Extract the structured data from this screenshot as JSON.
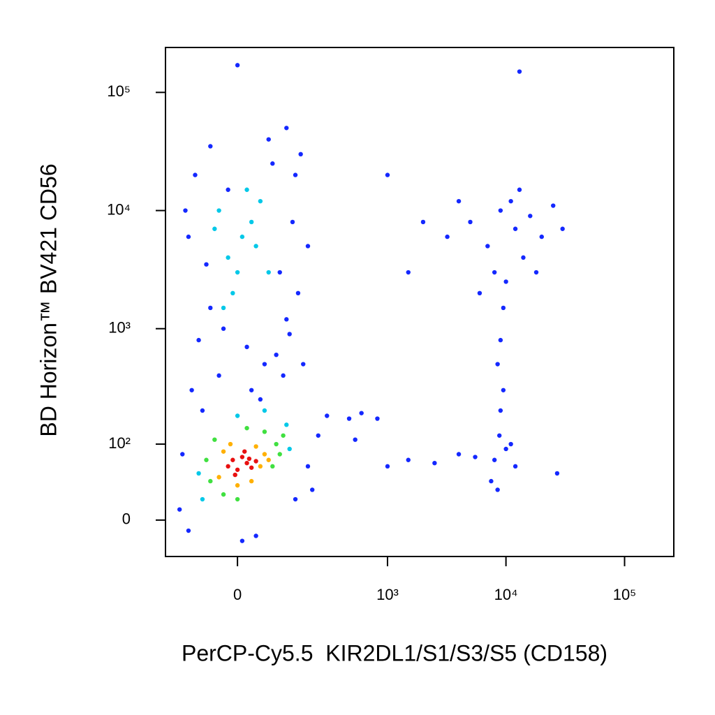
{
  "chart_data": {
    "type": "scatter",
    "x_label": "PerCP-Cy5.5  KIR2DL1/S1/S3/S5 (CD158)",
    "y_label": "BD Horizon™ BV421 CD56",
    "xscale": "biexponential",
    "yscale": "biexponential",
    "xlim": [
      -207,
      260000
    ],
    "ylim": [
      -37,
      240000
    ],
    "xticks": [
      0,
      {
        "value": 1000,
        "label": "10³"
      },
      {
        "value": 10000,
        "label": "10⁴"
      },
      {
        "value": 100000,
        "label": "10⁵"
      }
    ],
    "yticks": [
      0,
      {
        "value": 100,
        "label": "10²"
      },
      {
        "value": 1000,
        "label": "10³"
      },
      {
        "value": 10000,
        "label": "10⁴"
      },
      {
        "value": 100000,
        "label": "10⁵"
      }
    ],
    "series": [
      {
        "color": "#1428ff",
        "x": [
          -100,
          80,
          -60,
          100,
          140,
          -120,
          150,
          -90,
          60,
          120,
          -40,
          30,
          90,
          -110,
          160,
          200,
          -130,
          170,
          70,
          -60,
          120,
          0,
          -150,
          200,
          250,
          300,
          -120,
          40,
          150,
          220,
          -140,
          470,
          600,
          820,
          530,
          1000,
          1500,
          2500,
          4000,
          5500,
          3200,
          5000,
          7000,
          9000,
          12000,
          14000,
          11000,
          8000,
          16000,
          20000,
          25000,
          6000,
          10000,
          13000,
          30000,
          4000,
          18000,
          9500,
          9000,
          8500,
          9500,
          9000,
          8800,
          10000,
          8000,
          11000,
          12000,
          7500,
          27000,
          8500,
          13000,
          1000,
          2000,
          1500,
          -30,
          20,
          -80,
          110,
          50,
          -20,
          130,
          -70,
          180,
          10
        ],
        "values": [
          20000,
          25000,
          1500,
          3000,
          8000,
          6000,
          20000,
          800,
          500,
          1200,
          400,
          300,
          600,
          300,
          2000,
          5000,
          10000,
          30000,
          40000,
          35000,
          50000,
          170000,
          10,
          60,
          120,
          180,
          -10,
          -15,
          20,
          30,
          80,
          170,
          190,
          170,
          110,
          60,
          70,
          65,
          80,
          75,
          6000,
          8000,
          5000,
          10000,
          7000,
          4000,
          12000,
          3000,
          9000,
          6000,
          11000,
          2000,
          2500,
          15000,
          7000,
          12000,
          3000,
          1500,
          800,
          500,
          300,
          200,
          120,
          90,
          70,
          100,
          60,
          40,
          50,
          30,
          150000,
          20000,
          8000,
          3000,
          1000,
          700,
          200,
          400,
          250,
          15000,
          900,
          3500,
          500,
          -20
        ]
      },
      {
        "color": "#00c8e8",
        "x": [
          -20,
          10,
          30,
          -40,
          0,
          50,
          -10,
          20,
          40,
          -90,
          130,
          120,
          -80,
          0,
          60,
          -50,
          70,
          -30
        ],
        "values": [
          4000,
          6000,
          8000,
          10000,
          3000,
          12000,
          2000,
          15000,
          5000,
          50,
          90,
          150,
          20,
          180,
          200,
          7000,
          3000,
          1500
        ]
      },
      {
        "color": "#40e040",
        "x": [
          -60,
          80,
          -50,
          90,
          0,
          60,
          -30,
          100,
          20,
          -70,
          110
        ],
        "values": [
          40,
          60,
          110,
          100,
          20,
          130,
          25,
          80,
          140,
          70,
          120
        ]
      },
      {
        "color": "#ffb000",
        "x": [
          -40,
          50,
          60,
          -30,
          0,
          40,
          -15,
          70,
          30
        ],
        "values": [
          45,
          60,
          80,
          85,
          35,
          95,
          100,
          70,
          40
        ]
      },
      {
        "color": "#e81010",
        "x": [
          -20,
          0,
          20,
          10,
          -10,
          30,
          40,
          -5,
          15,
          25
        ],
        "values": [
          60,
          55,
          65,
          75,
          70,
          58,
          68,
          48,
          85,
          72
        ]
      }
    ]
  }
}
